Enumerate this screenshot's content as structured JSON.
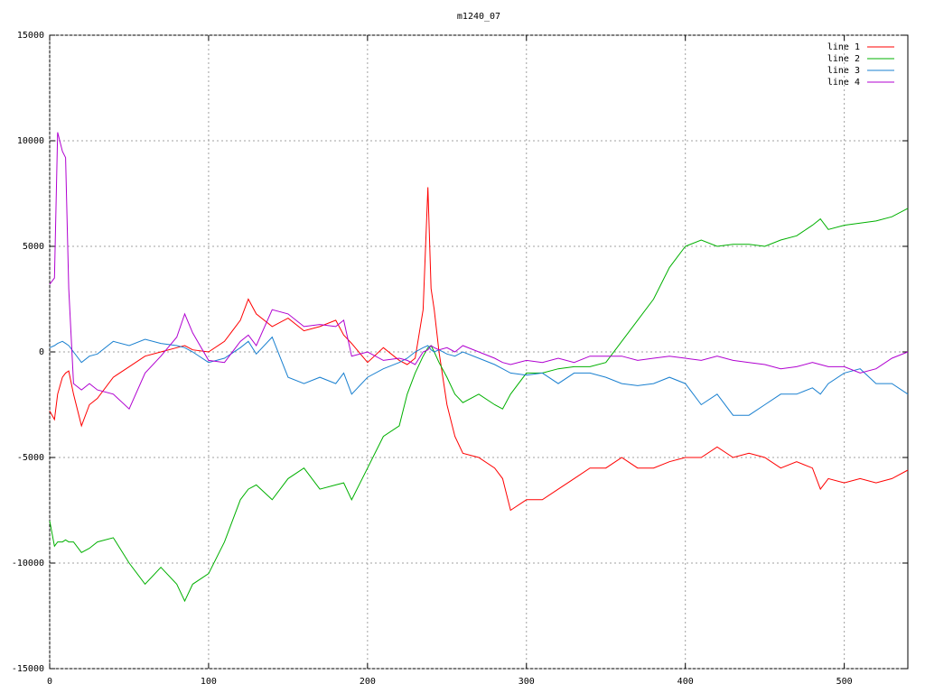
{
  "chart_data": {
    "type": "line",
    "title": "m1240_07",
    "x": [
      0,
      3,
      5,
      8,
      10,
      12,
      15,
      20,
      25,
      30,
      40,
      50,
      60,
      70,
      80,
      85,
      90,
      100,
      110,
      120,
      125,
      130,
      140,
      150,
      160,
      170,
      180,
      185,
      190,
      200,
      210,
      220,
      225,
      230,
      235,
      238,
      240,
      242,
      245,
      250,
      255,
      260,
      270,
      280,
      285,
      290,
      300,
      310,
      320,
      330,
      340,
      350,
      360,
      370,
      380,
      390,
      400,
      410,
      420,
      430,
      440,
      450,
      460,
      470,
      480,
      485,
      490,
      500,
      510,
      520,
      530,
      540
    ],
    "series": [
      {
        "name": "line 1",
        "color": "#ff0000",
        "values": [
          -2800,
          -3200,
          -2000,
          -1200,
          -1000,
          -900,
          -2000,
          -3500,
          -2500,
          -2200,
          -1200,
          -700,
          -200,
          0,
          200,
          300,
          100,
          0,
          500,
          1500,
          2500,
          1800,
          1200,
          1600,
          1000,
          1200,
          1500,
          800,
          400,
          -500,
          200,
          -400,
          -600,
          -300,
          2000,
          7800,
          3000,
          2000,
          0,
          -2500,
          -4000,
          -4800,
          -5000,
          -5500,
          -6000,
          -7500,
          -7000,
          -7000,
          -6500,
          -6000,
          -5500,
          -5500,
          -5000,
          -5500,
          -5500,
          -5200,
          -5000,
          -5000,
          -4500,
          -5000,
          -4800,
          -5000,
          -5500,
          -5200,
          -5500,
          -6500,
          -6000,
          -6200,
          -6000,
          -6200,
          -6000,
          -5600
        ]
      },
      {
        "name": "line 2",
        "color": "#00b000",
        "values": [
          -8000,
          -9200,
          -9000,
          -9000,
          -8900,
          -9000,
          -9000,
          -9500,
          -9300,
          -9000,
          -8800,
          -10000,
          -11000,
          -10200,
          -11000,
          -11800,
          -11000,
          -10500,
          -9000,
          -7000,
          -6500,
          -6300,
          -7000,
          -6000,
          -5500,
          -6500,
          -6300,
          -6200,
          -7000,
          -5500,
          -4000,
          -3500,
          -2000,
          -1000,
          -200,
          200,
          300,
          0,
          -500,
          -1200,
          -2000,
          -2400,
          -2000,
          -2500,
          -2700,
          -2000,
          -1000,
          -1000,
          -800,
          -700,
          -700,
          -500,
          500,
          1500,
          2500,
          4000,
          5000,
          5300,
          5000,
          5100,
          5100,
          5000,
          5300,
          5500,
          6000,
          6300,
          5800,
          6000,
          6100,
          6200,
          6400,
          6800
        ]
      },
      {
        "name": "line 3",
        "color": "#1a80d0",
        "values": [
          200,
          300,
          400,
          500,
          400,
          300,
          0,
          -500,
          -200,
          -100,
          500,
          300,
          600,
          400,
          300,
          200,
          0,
          -500,
          -300,
          200,
          500,
          -100,
          700,
          -1200,
          -1500,
          -1200,
          -1500,
          -1000,
          -2000,
          -1200,
          -800,
          -500,
          -300,
          0,
          200,
          300,
          100,
          0,
          100,
          -100,
          -200,
          0,
          -300,
          -600,
          -800,
          -1000,
          -1100,
          -1000,
          -1500,
          -1000,
          -1000,
          -1200,
          -1500,
          -1600,
          -1500,
          -1200,
          -1500,
          -2500,
          -2000,
          -3000,
          -3000,
          -2500,
          -2000,
          -2000,
          -1700,
          -2000,
          -1500,
          -1000,
          -800,
          -1500,
          -1500,
          -2000
        ]
      },
      {
        "name": "line 4",
        "color": "#b000d0",
        "values": [
          3200,
          3500,
          10400,
          9500,
          9200,
          3000,
          -1500,
          -1800,
          -1500,
          -1800,
          -2000,
          -2700,
          -1000,
          -200,
          700,
          1800,
          900,
          -400,
          -500,
          500,
          800,
          300,
          2000,
          1800,
          1200,
          1300,
          1200,
          1500,
          -200,
          0,
          -400,
          -300,
          -400,
          -600,
          0,
          100,
          300,
          200,
          100,
          200,
          0,
          300,
          0,
          -300,
          -500,
          -600,
          -400,
          -500,
          -300,
          -500,
          -200,
          -200,
          -200,
          -400,
          -300,
          -200,
          -300,
          -400,
          -200,
          -400,
          -500,
          -600,
          -800,
          -700,
          -500,
          -600,
          -700,
          -700,
          -1000,
          -800,
          -300,
          0
        ]
      }
    ],
    "xlim": [
      0,
      540
    ],
    "xticks": [
      0,
      100,
      200,
      300,
      400,
      500
    ],
    "ylim": [
      -15000,
      15000
    ],
    "yticks": [
      -15000,
      -10000,
      -5000,
      0,
      5000,
      10000,
      15000
    ],
    "grid": true,
    "legend": "top-right"
  }
}
